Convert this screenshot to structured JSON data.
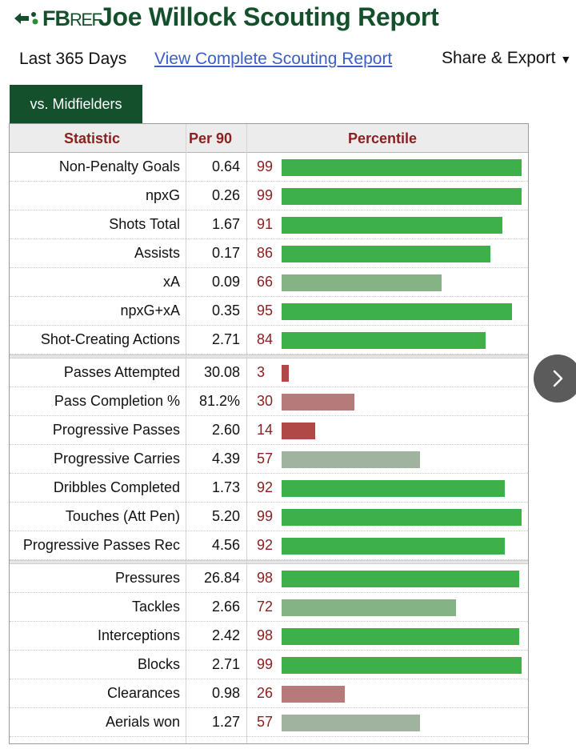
{
  "header": {
    "logo": {
      "fb": "FB",
      "ref": "REF"
    },
    "title": "Joe Willock Scouting Report"
  },
  "subnav": {
    "period": "Last 365 Days",
    "full_report_link": "View Complete Scouting Report",
    "share_label": "Share & Export",
    "share_caret": "▼"
  },
  "tab": {
    "label": "vs. Midfielders"
  },
  "table": {
    "headers": {
      "statistic": "Statistic",
      "per90": "Per 90",
      "percentile": "Percentile"
    },
    "groups": [
      [
        {
          "stat": "Non-Penalty Goals",
          "per90": "0.64",
          "pct": 99
        },
        {
          "stat": "npxG",
          "per90": "0.26",
          "pct": 99
        },
        {
          "stat": "Shots Total",
          "per90": "1.67",
          "pct": 91
        },
        {
          "stat": "Assists",
          "per90": "0.17",
          "pct": 86
        },
        {
          "stat": "xA",
          "per90": "0.09",
          "pct": 66
        },
        {
          "stat": "npxG+xA",
          "per90": "0.35",
          "pct": 95
        },
        {
          "stat": "Shot-Creating Actions",
          "per90": "2.71",
          "pct": 84
        }
      ],
      [
        {
          "stat": "Passes Attempted",
          "per90": "30.08",
          "pct": 3
        },
        {
          "stat": "Pass Completion %",
          "per90": "81.2%",
          "pct": 30
        },
        {
          "stat": "Progressive Passes",
          "per90": "2.60",
          "pct": 14
        },
        {
          "stat": "Progressive Carries",
          "per90": "4.39",
          "pct": 57
        },
        {
          "stat": "Dribbles Completed",
          "per90": "1.73",
          "pct": 92
        },
        {
          "stat": "Touches (Att Pen)",
          "per90": "5.20",
          "pct": 99
        },
        {
          "stat": "Progressive Passes Rec",
          "per90": "4.56",
          "pct": 92
        }
      ],
      [
        {
          "stat": "Pressures",
          "per90": "26.84",
          "pct": 98
        },
        {
          "stat": "Tackles",
          "per90": "2.66",
          "pct": 72
        },
        {
          "stat": "Interceptions",
          "per90": "2.42",
          "pct": 98
        },
        {
          "stat": "Blocks",
          "per90": "2.71",
          "pct": 99
        },
        {
          "stat": "Clearances",
          "per90": "0.98",
          "pct": 26
        },
        {
          "stat": "Aerials won",
          "per90": "1.27",
          "pct": 57
        }
      ]
    ]
  },
  "colors": {
    "brand_green": "#14502b",
    "header_red": "#8b1f1f",
    "link_blue": "#3b5ec7"
  },
  "icons": {
    "next": "chevron-right-icon",
    "logo": "fbref-logo-icon"
  }
}
